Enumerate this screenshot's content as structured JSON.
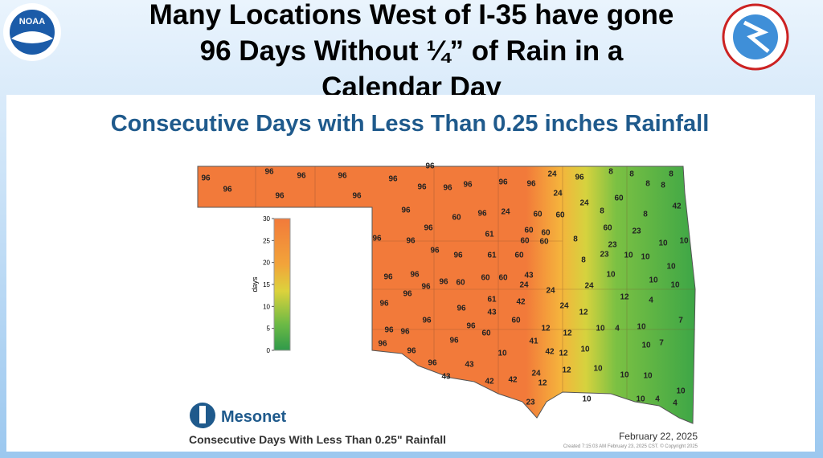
{
  "header": {
    "title_lines": [
      "Many Locations West of I-35 have gone",
      "96 Days Without ¼” of Rain in a",
      "Calendar Day"
    ],
    "noaa_logo": "NOAA"
  },
  "map": {
    "title": "Consecutive Days with Less Than 0.25 inches Rainfall",
    "colorbar": {
      "label": "days",
      "ticks": [
        0,
        5,
        10,
        15,
        20,
        25,
        30
      ]
    },
    "stations": [
      96,
      96,
      96,
      96,
      96,
      96,
      96,
      96,
      96,
      96,
      96,
      96,
      96,
      96,
      24,
      96,
      8,
      8,
      8,
      8,
      8,
      24,
      24,
      60,
      8,
      8,
      42,
      96,
      60,
      96,
      24,
      60,
      60,
      96,
      96,
      96,
      61,
      60,
      60,
      60,
      60,
      60,
      23,
      8,
      23,
      10,
      10,
      96,
      96,
      61,
      60,
      23,
      10,
      8,
      10,
      10,
      96,
      96,
      96,
      96,
      60,
      60,
      60,
      43,
      24,
      10,
      24,
      10,
      10,
      96,
      61,
      42,
      24,
      12,
      4,
      96,
      96,
      43,
      24,
      12,
      96,
      96,
      96,
      60,
      12,
      60,
      96,
      12,
      10,
      4,
      10,
      7,
      96,
      41,
      10,
      7,
      96,
      96,
      10,
      42,
      12,
      10,
      96,
      43,
      12,
      10,
      10,
      10,
      24,
      43,
      42,
      42,
      12,
      10,
      4,
      4,
      10,
      10,
      23
    ],
    "logo": "Mesonet",
    "caption": "Consecutive Days With Less Than 0.25\" Rainfall",
    "date": "February 22, 2025",
    "credit": "Created 7:15:03 AM February 23, 2025 CST. © Copyright 2025"
  }
}
